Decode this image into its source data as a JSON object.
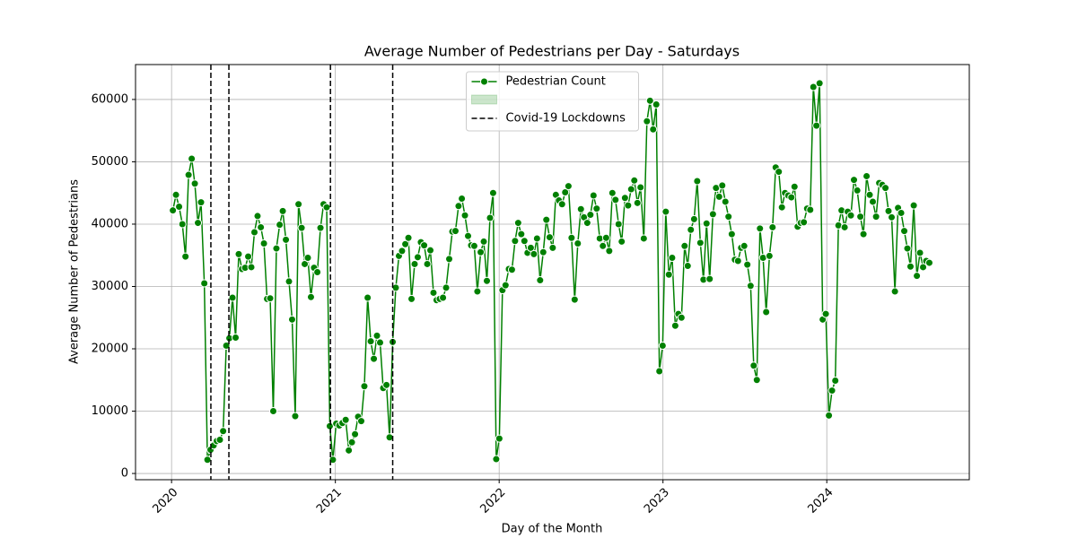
{
  "chart_data": {
    "type": "line",
    "title": "Average Number of Pedestrians per Day - Saturdays",
    "x_label": "Day of the Month",
    "y_label": "Average Number of Pedestrians",
    "x": [
      2020.008,
      2020.027,
      2020.046,
      2020.066,
      2020.085,
      2020.104,
      2020.123,
      2020.142,
      2020.161,
      2020.18,
      2020.2,
      2020.219,
      2020.238,
      2020.257,
      2020.276,
      2020.295,
      2020.315,
      2020.334,
      2020.353,
      2020.372,
      2020.391,
      2020.41,
      2020.43,
      2020.449,
      2020.468,
      2020.487,
      2020.506,
      2020.525,
      2020.545,
      2020.564,
      2020.583,
      2020.602,
      2020.621,
      2020.64,
      2020.66,
      2020.679,
      2020.698,
      2020.717,
      2020.736,
      2020.755,
      2020.775,
      2020.794,
      2020.813,
      2020.832,
      2020.851,
      2020.87,
      2020.89,
      2020.909,
      2020.928,
      2020.947,
      2020.966,
      2020.985,
      2021.005,
      2021.024,
      2021.043,
      2021.063,
      2021.082,
      2021.101,
      2021.12,
      2021.139,
      2021.158,
      2021.177,
      2021.197,
      2021.216,
      2021.235,
      2021.254,
      2021.273,
      2021.292,
      2021.312,
      2021.331,
      2021.35,
      2021.369,
      2021.388,
      2021.407,
      2021.427,
      2021.446,
      2021.465,
      2021.484,
      2021.503,
      2021.522,
      2021.542,
      2021.561,
      2021.58,
      2021.599,
      2021.618,
      2021.637,
      2021.657,
      2021.676,
      2021.695,
      2021.714,
      2021.733,
      2021.752,
      2021.772,
      2021.791,
      2021.81,
      2021.829,
      2021.848,
      2021.867,
      2021.887,
      2021.906,
      2021.925,
      2021.944,
      2021.963,
      2021.982,
      2022.001,
      2022.02,
      2022.039,
      2022.059,
      2022.078,
      2022.097,
      2022.116,
      2022.135,
      2022.154,
      2022.173,
      2022.193,
      2022.212,
      2022.231,
      2022.25,
      2022.269,
      2022.288,
      2022.308,
      2022.327,
      2022.346,
      2022.365,
      2022.384,
      2022.403,
      2022.423,
      2022.442,
      2022.461,
      2022.48,
      2022.499,
      2022.518,
      2022.538,
      2022.557,
      2022.576,
      2022.595,
      2022.614,
      2022.633,
      2022.653,
      2022.672,
      2022.691,
      2022.71,
      2022.729,
      2022.748,
      2022.768,
      2022.787,
      2022.806,
      2022.825,
      2022.844,
      2022.863,
      2022.883,
      2022.902,
      2022.921,
      2022.94,
      2022.959,
      2022.978,
      2022.998,
      2023.017,
      2023.036,
      2023.056,
      2023.075,
      2023.094,
      2023.113,
      2023.132,
      2023.151,
      2023.17,
      2023.19,
      2023.209,
      2023.228,
      2023.247,
      2023.266,
      2023.285,
      2023.305,
      2023.324,
      2023.343,
      2023.362,
      2023.381,
      2023.4,
      2023.42,
      2023.439,
      2023.458,
      2023.477,
      2023.496,
      2023.515,
      2023.535,
      2023.554,
      2023.573,
      2023.592,
      2023.611,
      2023.63,
      2023.65,
      2023.669,
      2023.688,
      2023.707,
      2023.726,
      2023.745,
      2023.765,
      2023.784,
      2023.803,
      2023.822,
      2023.841,
      2023.86,
      2023.88,
      2023.899,
      2023.918,
      2023.937,
      2023.956,
      2023.975,
      2023.994,
      2024.013,
      2024.032,
      2024.052,
      2024.071,
      2024.09,
      2024.109,
      2024.128,
      2024.147,
      2024.166,
      2024.186,
      2024.205,
      2024.224,
      2024.243,
      2024.262,
      2024.281,
      2024.301,
      2024.32,
      2024.339,
      2024.358,
      2024.377,
      2024.396,
      2024.416,
      2024.435,
      2024.454,
      2024.473,
      2024.492,
      2024.511,
      2024.531,
      2024.55,
      2024.569,
      2024.588,
      2024.607,
      2024.626
    ],
    "series": [
      {
        "name": "Pedestrian Count",
        "color": "#008000",
        "values": [
          42200,
          44700,
          42800,
          40000,
          34800,
          47900,
          50500,
          46500,
          40200,
          43500,
          30500,
          2200,
          3800,
          4500,
          5200,
          5400,
          6800,
          20500,
          21700,
          28200,
          21800,
          35200,
          32800,
          33000,
          34800,
          33100,
          38700,
          41300,
          39500,
          36900,
          28000,
          28100,
          10000,
          36100,
          39900,
          42100,
          37500,
          30800,
          24700,
          9200,
          43200,
          39400,
          33600,
          34600,
          28300,
          33000,
          32300,
          39400,
          43200,
          42700,
          7600,
          2200,
          8000,
          7700,
          8100,
          8600,
          3700,
          5000,
          6300,
          9100,
          8400,
          14000,
          28200,
          21200,
          18400,
          22100,
          21000,
          13700,
          14200,
          5800,
          21100,
          29800,
          34900,
          35700,
          36800,
          37800,
          28000,
          33600,
          34700,
          37100,
          36600,
          33600,
          35800,
          29000,
          27800,
          28000,
          28200,
          29800,
          34400,
          38800,
          38900,
          42900,
          44100,
          41400,
          38100,
          36600,
          36500,
          29200,
          35500,
          37200,
          30900,
          41000,
          45000,
          2300,
          5600,
          29400,
          30200,
          32800,
          32700,
          37300,
          40200,
          38400,
          37300,
          35400,
          36200,
          35200,
          37700,
          31000,
          35500,
          40700,
          37900,
          36200,
          44700,
          43800,
          43200,
          45100,
          46100,
          37800,
          27900,
          36900,
          42400,
          41100,
          40200,
          41500,
          44600,
          42500,
          37700,
          36500,
          37800,
          35700,
          45000,
          43900,
          40000,
          37200,
          44200,
          43000,
          45600,
          47000,
          43400,
          45900,
          37700,
          56500,
          59800,
          55200,
          59200,
          16400,
          20500,
          42000,
          31900,
          34600,
          23700,
          25600,
          25000,
          36500,
          33300,
          39100,
          40800,
          46900,
          37000,
          31100,
          40100,
          31200,
          41600,
          45800,
          44400,
          46200,
          43600,
          41200,
          38400,
          34300,
          34100,
          36200,
          36500,
          33500,
          30100,
          17300,
          15000,
          39300,
          34600,
          25900,
          34900,
          39500,
          49100,
          48400,
          42700,
          45000,
          44600,
          44300,
          46000,
          39600,
          40200,
          40300,
          42500,
          42300,
          62000,
          55800,
          62600,
          24700,
          25600,
          9300,
          13300,
          14900,
          39800,
          42200,
          39500,
          42000,
          41400,
          47100,
          45400,
          41200,
          38400,
          47700,
          44700,
          43600,
          41200,
          46600,
          46300,
          45800,
          42100,
          41100,
          29200,
          42600,
          41800,
          38900,
          36100,
          33200,
          43000,
          31700,
          35400,
          33100,
          34100,
          33800
        ]
      }
    ],
    "vlines": {
      "name": "Covid-19 Lockdowns",
      "color": "#000000",
      "x": [
        2020.24,
        2020.35,
        2020.97,
        2021.35
      ]
    },
    "xlim": [
      2019.78,
      2024.87
    ],
    "xticks": [
      2020,
      2021,
      2022,
      2023,
      2024
    ],
    "ylim": [
      -1000,
      65600
    ],
    "yticks": [
      0,
      10000,
      20000,
      30000,
      40000,
      50000,
      60000
    ],
    "grid": true,
    "legend": "upper center"
  }
}
